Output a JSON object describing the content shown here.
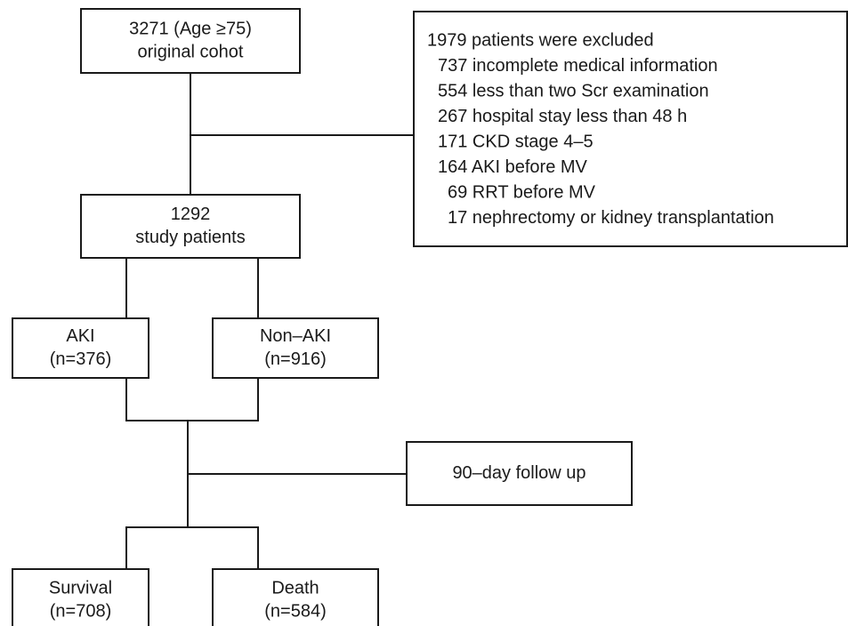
{
  "nodes": [
    {
      "label": [
        "3271 (Age ≥75)",
        "original cohot"
      ]
    },
    {
      "label": [
        "1292",
        "study patients"
      ]
    },
    {
      "label": [
        "AKI",
        "(n=376)"
      ]
    },
    {
      "label": [
        "Non–AKI",
        "(n=916)"
      ]
    },
    {
      "label": [
        "90–day follow up"
      ]
    },
    {
      "label": [
        "Survival",
        "(n=708)"
      ]
    },
    {
      "label": [
        "Death",
        "(n=584)"
      ]
    }
  ],
  "exclusion": {
    "title": "1979 patients were excluded",
    "items": [
      "737 incomplete medical information",
      "554 less than two Scr examination",
      "267 hospital stay less than 48 h",
      "171 CKD stage 4–5",
      "164 AKI before MV",
      "69 RRT before MV",
      "17 nephrectomy or kidney transplantation"
    ]
  }
}
